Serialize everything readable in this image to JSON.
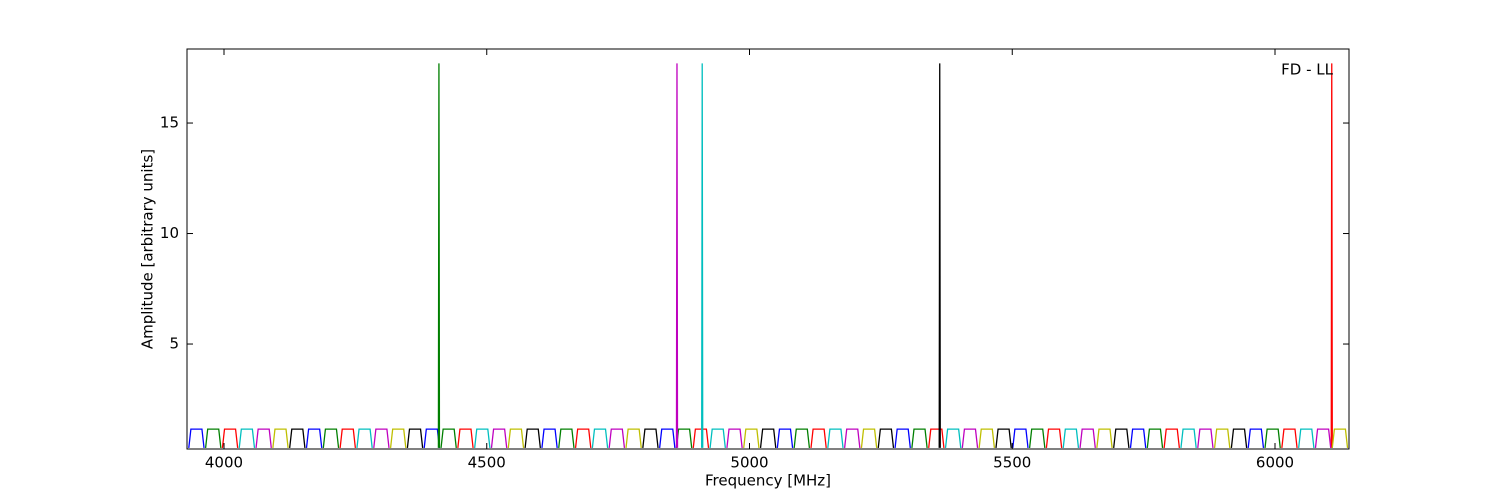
{
  "chart_data": {
    "type": "line",
    "annotation": "FD - LL",
    "x_label": "Frequency [MHz]",
    "y_label": "Amplitude [arbitrary units]",
    "xlim": [
      3929.6,
      6140.8
    ],
    "ylim": [
      0.25,
      18.35
    ],
    "xticks": [
      4000,
      4500,
      5000,
      5500,
      6000
    ],
    "yticks": [
      5,
      10,
      15
    ],
    "grid": false,
    "series": [
      {
        "color": "#0000ff",
        "x": [
          3933,
          3937,
          3958,
          3962,
          null,
          4157,
          4161,
          4182,
          4186,
          null,
          4381,
          4385,
          4406,
          4410,
          null,
          4605,
          4609,
          4630,
          4634,
          null,
          4829,
          4833,
          4854,
          4858,
          null,
          5053,
          5057,
          5078,
          5082,
          null,
          5277,
          5281,
          5302,
          5306,
          null,
          5501,
          5505,
          5526,
          5530,
          null,
          5725,
          5729,
          5750,
          5754,
          null,
          5949,
          5953,
          5974,
          5978
        ],
        "values": [
          0.3,
          1.15,
          1.15,
          0.3,
          null,
          0.3,
          1.15,
          1.15,
          0.3,
          null,
          0.3,
          1.15,
          1.15,
          0.3,
          null,
          0.3,
          1.15,
          1.15,
          0.3,
          null,
          0.3,
          1.15,
          1.15,
          0.3,
          null,
          0.3,
          1.15,
          1.15,
          0.3,
          null,
          0.3,
          1.15,
          1.15,
          0.3,
          null,
          0.3,
          1.15,
          1.15,
          0.3,
          null,
          0.3,
          1.15,
          1.15,
          0.3,
          null,
          0.3,
          1.15,
          1.15,
          0.3
        ]
      },
      {
        "color": "#007f00",
        "x": [
          3965,
          3969,
          3990,
          3994,
          null,
          4189,
          4193,
          4214,
          4218,
          null,
          4413,
          4417,
          4438,
          4442,
          null,
          4637,
          4641,
          4662,
          4666,
          null,
          4861,
          4865,
          4886,
          4890,
          null,
          5085,
          5089,
          5110,
          5114,
          null,
          5309,
          5313,
          5334,
          5338,
          null,
          5533,
          5537,
          5558,
          5562,
          null,
          5757,
          5761,
          5782,
          5786,
          null,
          5981,
          5985,
          6006,
          6010,
          null,
          4408,
          4409,
          4410
        ],
        "values": [
          0.3,
          1.15,
          1.15,
          0.3,
          null,
          0.3,
          1.15,
          1.15,
          0.3,
          null,
          0.3,
          1.15,
          1.15,
          0.3,
          null,
          0.3,
          1.15,
          1.15,
          0.3,
          null,
          0.3,
          1.15,
          1.15,
          0.3,
          null,
          0.3,
          1.15,
          1.15,
          0.3,
          null,
          0.3,
          1.15,
          1.15,
          0.3,
          null,
          0.3,
          1.15,
          1.15,
          0.3,
          null,
          0.3,
          1.15,
          1.15,
          0.3,
          null,
          0.3,
          1.15,
          1.15,
          0.3,
          null,
          0.3,
          17.7,
          0.3
        ]
      },
      {
        "color": "#ff0000",
        "x": [
          3997,
          4001,
          4022,
          4026,
          null,
          4221,
          4225,
          4246,
          4250,
          null,
          4445,
          4449,
          4470,
          4474,
          null,
          4669,
          4673,
          4694,
          4698,
          null,
          4893,
          4897,
          4918,
          4922,
          null,
          5117,
          5121,
          5142,
          5146,
          null,
          5341,
          5345,
          5366,
          5370,
          null,
          5565,
          5569,
          5590,
          5594,
          null,
          5789,
          5793,
          5814,
          5818,
          null,
          6013,
          6017,
          6038,
          6042,
          null,
          6107,
          6108,
          6109
        ],
        "values": [
          0.3,
          1.15,
          1.15,
          0.3,
          null,
          0.3,
          1.15,
          1.15,
          0.3,
          null,
          0.3,
          1.15,
          1.15,
          0.3,
          null,
          0.3,
          1.15,
          1.15,
          0.3,
          null,
          0.3,
          1.15,
          1.15,
          0.3,
          null,
          0.3,
          1.15,
          1.15,
          0.3,
          null,
          0.3,
          1.15,
          1.15,
          0.3,
          null,
          0.3,
          1.15,
          1.15,
          0.3,
          null,
          0.3,
          1.15,
          1.15,
          0.3,
          null,
          0.3,
          1.15,
          1.15,
          0.3,
          null,
          0.3,
          17.7,
          0.3
        ]
      },
      {
        "color": "#00bfbf",
        "x": [
          4029,
          4033,
          4054,
          4058,
          null,
          4253,
          4257,
          4278,
          4282,
          null,
          4477,
          4481,
          4502,
          4506,
          null,
          4701,
          4705,
          4726,
          4730,
          null,
          4925,
          4929,
          4950,
          4954,
          null,
          5149,
          5153,
          5174,
          5178,
          null,
          5373,
          5377,
          5398,
          5402,
          null,
          5597,
          5601,
          5622,
          5626,
          null,
          5821,
          5825,
          5846,
          5850,
          null,
          6045,
          6049,
          6070,
          6074,
          null,
          4909,
          4910,
          4911
        ],
        "values": [
          0.3,
          1.15,
          1.15,
          0.3,
          null,
          0.3,
          1.15,
          1.15,
          0.3,
          null,
          0.3,
          1.15,
          1.15,
          0.3,
          null,
          0.3,
          1.15,
          1.15,
          0.3,
          null,
          0.3,
          1.15,
          1.15,
          0.3,
          null,
          0.3,
          1.15,
          1.15,
          0.3,
          null,
          0.3,
          1.15,
          1.15,
          0.3,
          null,
          0.3,
          1.15,
          1.15,
          0.3,
          null,
          0.3,
          1.15,
          1.15,
          0.3,
          null,
          0.3,
          1.15,
          1.15,
          0.3,
          null,
          0.3,
          17.7,
          0.3
        ]
      },
      {
        "color": "#bf00bf",
        "x": [
          4061,
          4065,
          4086,
          4090,
          null,
          4285,
          4289,
          4310,
          4314,
          null,
          4509,
          4513,
          4534,
          4538,
          null,
          4733,
          4737,
          4758,
          4762,
          null,
          4957,
          4961,
          4982,
          4986,
          null,
          5181,
          5185,
          5206,
          5210,
          null,
          5405,
          5409,
          5430,
          5434,
          null,
          5629,
          5633,
          5654,
          5658,
          null,
          5853,
          5857,
          5878,
          5882,
          null,
          6077,
          6081,
          6102,
          6106,
          null,
          4861,
          4862,
          4863
        ],
        "values": [
          0.3,
          1.15,
          1.15,
          0.3,
          null,
          0.3,
          1.15,
          1.15,
          0.3,
          null,
          0.3,
          1.15,
          1.15,
          0.3,
          null,
          0.3,
          1.15,
          1.15,
          0.3,
          null,
          0.3,
          1.15,
          1.15,
          0.3,
          null,
          0.3,
          1.15,
          1.15,
          0.3,
          null,
          0.3,
          1.15,
          1.15,
          0.3,
          null,
          0.3,
          1.15,
          1.15,
          0.3,
          null,
          0.3,
          1.15,
          1.15,
          0.3,
          null,
          0.3,
          1.15,
          1.15,
          0.3,
          null,
          0.3,
          17.7,
          0.3
        ]
      },
      {
        "color": "#bfbf00",
        "x": [
          4093,
          4097,
          4118,
          4122,
          null,
          4317,
          4321,
          4342,
          4346,
          null,
          4541,
          4545,
          4566,
          4570,
          null,
          4765,
          4769,
          4790,
          4794,
          null,
          4989,
          4993,
          5014,
          5018,
          null,
          5213,
          5217,
          5238,
          5242,
          null,
          5437,
          5441,
          5462,
          5466,
          null,
          5661,
          5665,
          5686,
          5690,
          null,
          5885,
          5889,
          5910,
          5914,
          null,
          6109,
          6113,
          6134,
          6138
        ],
        "values": [
          0.3,
          1.15,
          1.15,
          0.3,
          null,
          0.3,
          1.15,
          1.15,
          0.3,
          null,
          0.3,
          1.15,
          1.15,
          0.3,
          null,
          0.3,
          1.15,
          1.15,
          0.3,
          null,
          0.3,
          1.15,
          1.15,
          0.3,
          null,
          0.3,
          1.15,
          1.15,
          0.3,
          null,
          0.3,
          1.15,
          1.15,
          0.3,
          null,
          0.3,
          1.15,
          1.15,
          0.3,
          null,
          0.3,
          1.15,
          1.15,
          0.3,
          null,
          0.3,
          1.15,
          1.15,
          0.3
        ]
      },
      {
        "color": "#000000",
        "x": [
          4125,
          4129,
          4150,
          4154,
          null,
          4349,
          4353,
          4374,
          4378,
          null,
          4573,
          4577,
          4598,
          4602,
          null,
          4797,
          4801,
          4822,
          4826,
          null,
          5021,
          5025,
          5046,
          5050,
          null,
          5245,
          5249,
          5270,
          5274,
          null,
          5469,
          5473,
          5494,
          5498,
          null,
          5693,
          5697,
          5718,
          5722,
          null,
          5917,
          5921,
          5942,
          5946,
          null,
          5361,
          5362,
          5363
        ],
        "values": [
          0.3,
          1.15,
          1.15,
          0.3,
          null,
          0.3,
          1.15,
          1.15,
          0.3,
          null,
          0.3,
          1.15,
          1.15,
          0.3,
          null,
          0.3,
          1.15,
          1.15,
          0.3,
          null,
          0.3,
          1.15,
          1.15,
          0.3,
          null,
          0.3,
          1.15,
          1.15,
          0.3,
          null,
          0.3,
          1.15,
          1.15,
          0.3,
          null,
          0.3,
          1.15,
          1.15,
          0.3,
          null,
          0.3,
          1.15,
          1.15,
          0.3,
          null,
          0.3,
          17.7,
          0.3
        ]
      }
    ]
  }
}
